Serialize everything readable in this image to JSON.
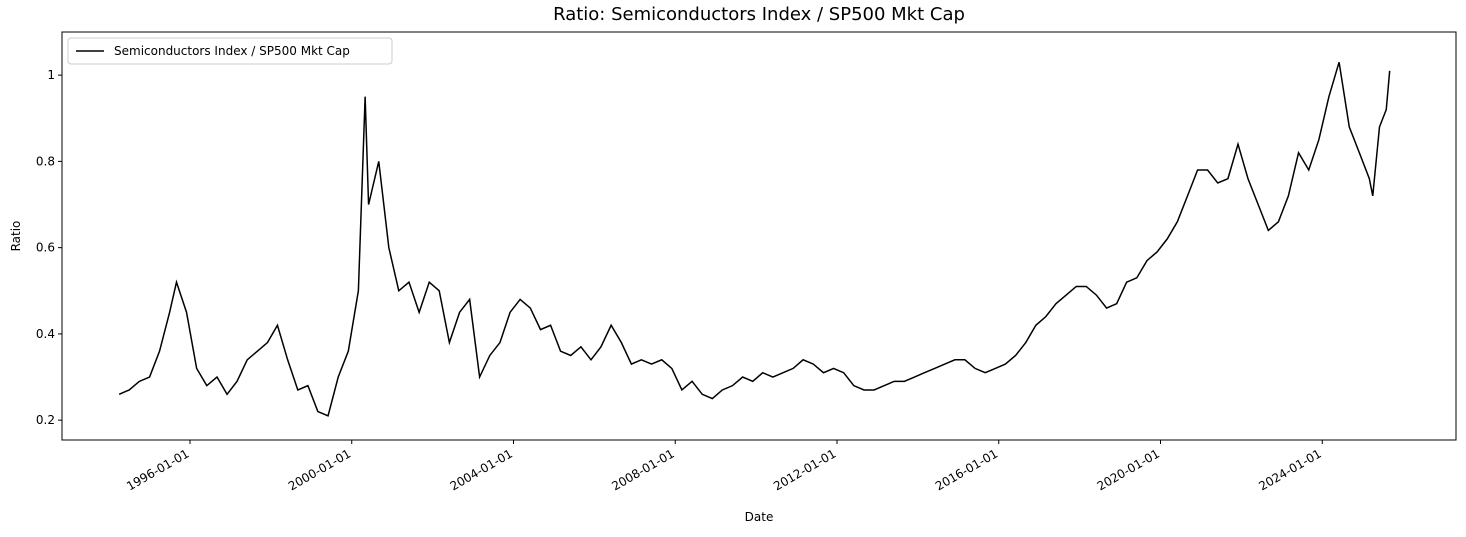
{
  "chart_data": {
    "type": "line",
    "title": "Ratio: Semiconductors Index / SP500 Mkt Cap",
    "xlabel": "Date",
    "ylabel": "Ratio",
    "legend": "upper left",
    "xlim": [
      "1992-11-01",
      "2027-04-23"
    ],
    "xticks": [
      "1996-01-01",
      "2000-01-01",
      "2004-01-01",
      "2008-01-01",
      "2012-01-01",
      "2016-01-01",
      "2020-01-01",
      "2024-01-01"
    ],
    "ylim": [
      0.154,
      1.1
    ],
    "yticks": [
      0.2,
      0.4,
      0.6,
      0.8,
      1.0
    ],
    "x": [
      "1994-04-01",
      "1994-07-01",
      "1994-10-01",
      "1995-01-01",
      "1995-04-01",
      "1995-07-01",
      "1995-09-01",
      "1995-12-01",
      "1996-03-01",
      "1996-06-01",
      "1996-09-01",
      "1996-12-01",
      "1997-03-01",
      "1997-06-01",
      "1997-09-01",
      "1997-12-01",
      "1998-03-01",
      "1998-06-01",
      "1998-09-01",
      "1998-12-01",
      "1999-03-01",
      "1999-06-01",
      "1999-09-01",
      "1999-12-01",
      "2000-03-01",
      "2000-05-01",
      "2000-06-01",
      "2000-09-01",
      "2000-12-01",
      "2001-03-01",
      "2001-06-01",
      "2001-09-01",
      "2001-12-01",
      "2002-03-01",
      "2002-06-01",
      "2002-09-01",
      "2002-12-01",
      "2003-03-01",
      "2003-06-01",
      "2003-09-01",
      "2003-12-01",
      "2004-03-01",
      "2004-06-01",
      "2004-09-01",
      "2004-12-01",
      "2005-03-01",
      "2005-06-01",
      "2005-09-01",
      "2005-12-01",
      "2006-03-01",
      "2006-06-01",
      "2006-09-01",
      "2006-12-01",
      "2007-03-01",
      "2007-06-01",
      "2007-09-01",
      "2007-12-01",
      "2008-03-01",
      "2008-06-01",
      "2008-09-01",
      "2008-12-01",
      "2009-03-01",
      "2009-06-01",
      "2009-09-01",
      "2009-12-01",
      "2010-03-01",
      "2010-06-01",
      "2010-09-01",
      "2010-12-01",
      "2011-03-01",
      "2011-06-01",
      "2011-09-01",
      "2011-12-01",
      "2012-03-01",
      "2012-06-01",
      "2012-09-01",
      "2012-12-01",
      "2013-03-01",
      "2013-06-01",
      "2013-09-01",
      "2013-12-01",
      "2014-03-01",
      "2014-06-01",
      "2014-09-01",
      "2014-12-01",
      "2015-03-01",
      "2015-06-01",
      "2015-09-01",
      "2015-12-01",
      "2016-03-01",
      "2016-06-01",
      "2016-09-01",
      "2016-12-01",
      "2017-03-01",
      "2017-06-01",
      "2017-09-01",
      "2017-12-01",
      "2018-03-01",
      "2018-06-01",
      "2018-09-01",
      "2018-12-01",
      "2019-03-01",
      "2019-06-01",
      "2019-09-01",
      "2019-12-01",
      "2020-03-01",
      "2020-06-01",
      "2020-09-01",
      "2020-12-01",
      "2021-03-01",
      "2021-06-01",
      "2021-09-01",
      "2021-12-01",
      "2022-03-01",
      "2022-06-01",
      "2022-09-01",
      "2022-12-01",
      "2023-03-01",
      "2023-06-01",
      "2023-09-01",
      "2023-12-01",
      "2024-03-01",
      "2024-06-01",
      "2024-09-01",
      "2024-12-01",
      "2025-03-01",
      "2025-04-01",
      "2025-06-01",
      "2025-08-01",
      "2025-09-01"
    ],
    "series": [
      {
        "name": "Semiconductors Index / SP500 Mkt Cap",
        "color": "#000000",
        "values": [
          0.26,
          0.27,
          0.29,
          0.3,
          0.36,
          0.45,
          0.52,
          0.45,
          0.32,
          0.28,
          0.3,
          0.26,
          0.29,
          0.34,
          0.36,
          0.38,
          0.42,
          0.34,
          0.27,
          0.28,
          0.22,
          0.21,
          0.3,
          0.36,
          0.5,
          0.95,
          0.7,
          0.8,
          0.6,
          0.5,
          0.52,
          0.45,
          0.52,
          0.5,
          0.38,
          0.45,
          0.48,
          0.3,
          0.35,
          0.38,
          0.45,
          0.48,
          0.46,
          0.41,
          0.42,
          0.36,
          0.35,
          0.37,
          0.34,
          0.37,
          0.42,
          0.38,
          0.33,
          0.34,
          0.33,
          0.34,
          0.32,
          0.27,
          0.29,
          0.26,
          0.25,
          0.27,
          0.28,
          0.3,
          0.29,
          0.31,
          0.3,
          0.31,
          0.32,
          0.34,
          0.33,
          0.31,
          0.32,
          0.31,
          0.28,
          0.27,
          0.27,
          0.28,
          0.29,
          0.29,
          0.3,
          0.31,
          0.32,
          0.33,
          0.34,
          0.34,
          0.32,
          0.31,
          0.32,
          0.33,
          0.35,
          0.38,
          0.42,
          0.44,
          0.47,
          0.49,
          0.51,
          0.51,
          0.49,
          0.46,
          0.47,
          0.52,
          0.53,
          0.57,
          0.59,
          0.62,
          0.66,
          0.72,
          0.78,
          0.78,
          0.75,
          0.76,
          0.84,
          0.76,
          0.7,
          0.64,
          0.66,
          0.72,
          0.82,
          0.78,
          0.85,
          0.95,
          1.03,
          0.88,
          0.82,
          0.76,
          0.72,
          0.88,
          0.92,
          1.01
        ]
      }
    ]
  }
}
